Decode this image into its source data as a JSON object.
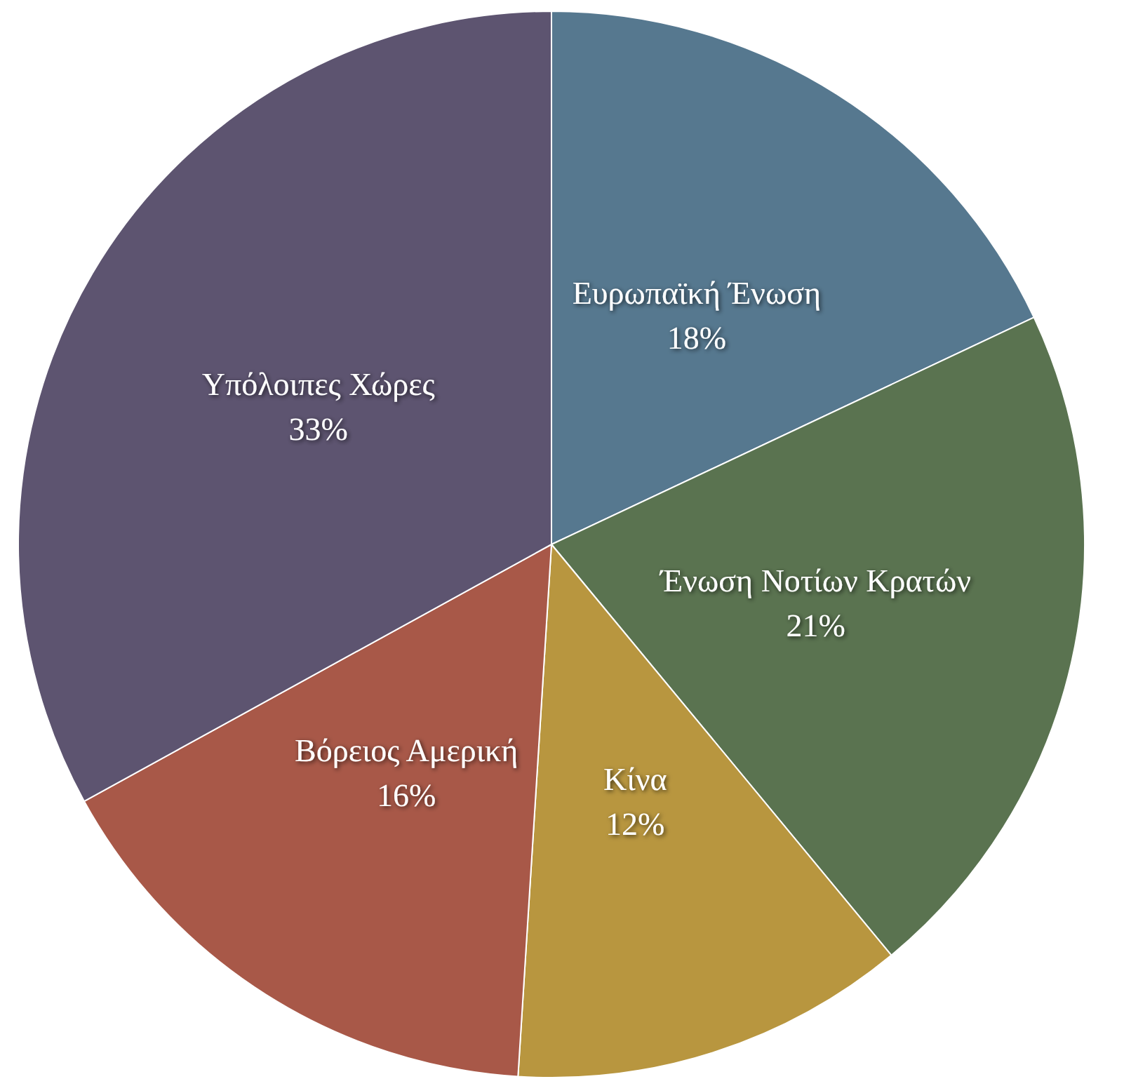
{
  "chart_data": {
    "type": "pie",
    "categories": [
      "Ευρωπαϊκή Ένωση",
      "Ένωση Νοτίων Κρατών",
      "Κίνα",
      "Βόρειος Αμερική",
      "Υπόλοιπες Χώρες"
    ],
    "values": [
      18,
      21,
      12,
      16,
      33
    ],
    "value_labels": [
      "18%",
      "21%",
      "12%",
      "16%",
      "33%"
    ],
    "colors": [
      "#56788f",
      "#5a7350",
      "#b8963f",
      "#a85848",
      "#5d5470"
    ],
    "legend": false
  }
}
